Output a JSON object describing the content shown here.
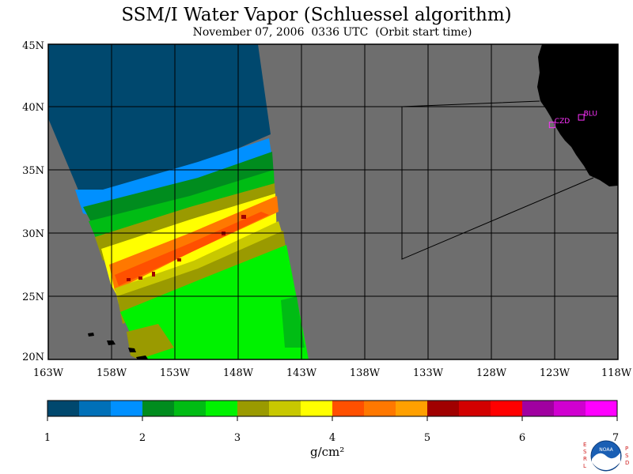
{
  "title": "SSM/I Water Vapor (Schluessel algorithm)",
  "subtitle": "November 07, 2006  0336 UTC  (Orbit start time)",
  "map": {
    "lat_ticks": [
      "45N",
      "40N",
      "35N",
      "30N",
      "25N",
      "20N"
    ],
    "lon_ticks": [
      "163W",
      "158W",
      "153W",
      "148W",
      "143W",
      "138W",
      "133W",
      "128W",
      "123W",
      "118W"
    ],
    "lat_range": [
      20,
      45
    ],
    "lon_range": [
      -163,
      -118
    ],
    "sites": [
      {
        "label": "CZD",
        "lat": 38.6,
        "lon": -123.2
      },
      {
        "label": "BLU",
        "lat": 39.2,
        "lon": -120.9
      }
    ],
    "colors": {
      "background": "#6e6e6e",
      "land": "#000000",
      "grid": "#000000",
      "site": "#ff33ff"
    }
  },
  "colorbar": {
    "tick_labels": [
      "1",
      "2",
      "3",
      "4",
      "5",
      "6",
      "7"
    ],
    "unit": "g/cm²",
    "colors": [
      "#00486e",
      "#0070b8",
      "#0090ff",
      "#008c1e",
      "#00bc14",
      "#00f200",
      "#9a9a00",
      "#c8c800",
      "#ffff00",
      "#ff5000",
      "#ff7800",
      "#ffa000",
      "#a00000",
      "#d20000",
      "#ff0000",
      "#a000a0",
      "#d000d0",
      "#ff00ff"
    ]
  },
  "logo": {
    "left_text": "ESRL",
    "right_text": "PSD",
    "center_text": "NOAA"
  }
}
